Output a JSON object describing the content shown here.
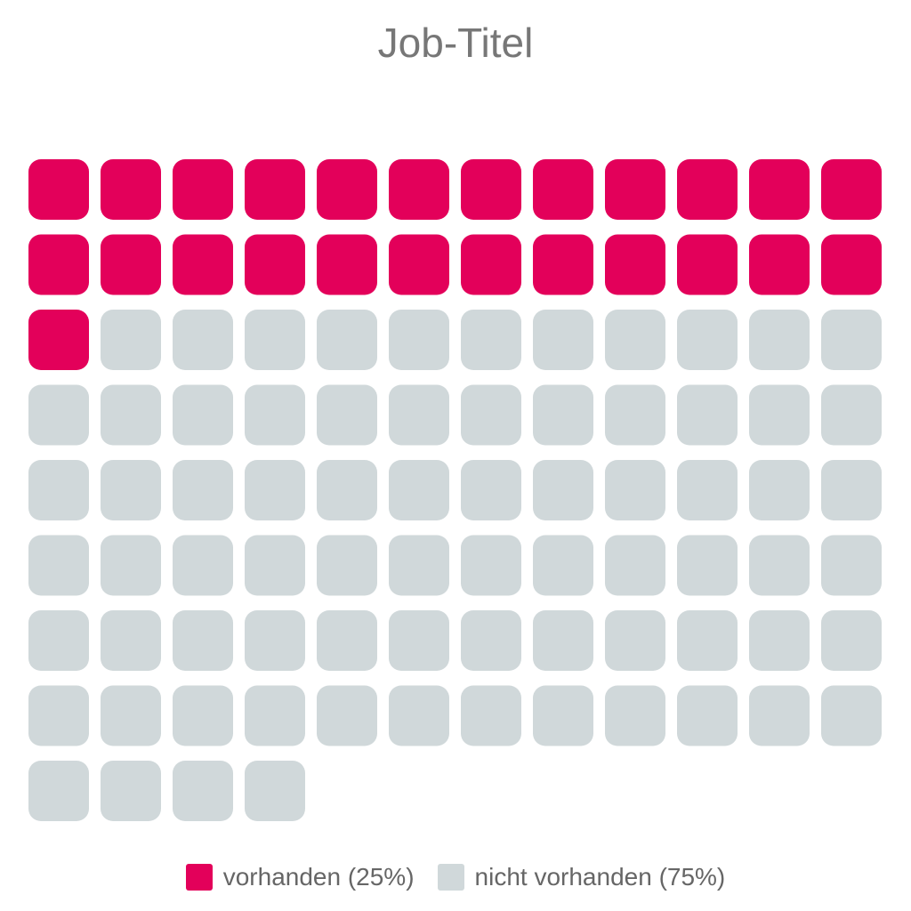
{
  "chart_data": {
    "type": "waffle",
    "title": "Job-Titel",
    "total_cells": 100,
    "columns": 12,
    "series": [
      {
        "name": "vorhanden (25%)",
        "value": 25,
        "color": "#e3005a"
      },
      {
        "name": "nicht vorhanden (75%)",
        "value": 75,
        "color": "#d0d8da"
      }
    ],
    "legend_position": "bottom"
  }
}
